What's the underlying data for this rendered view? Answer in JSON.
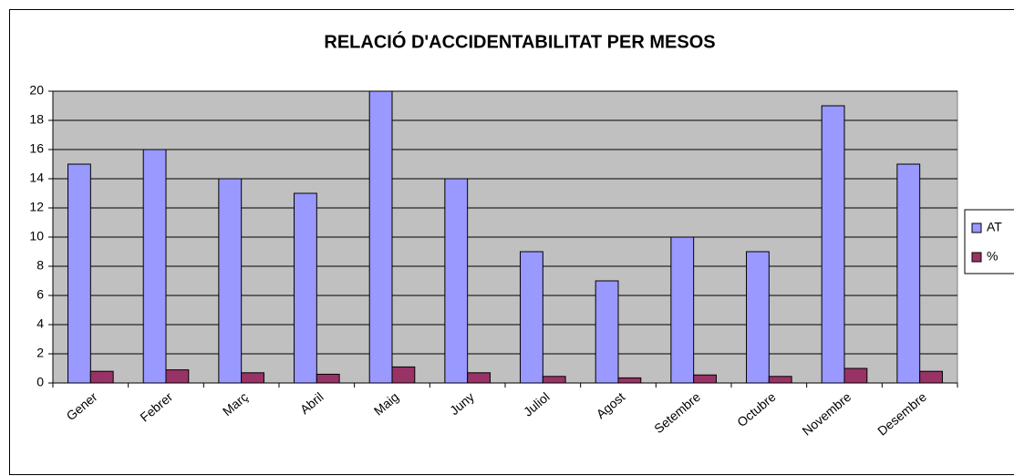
{
  "chart_data": {
    "type": "bar",
    "title": "RELACIÓ D'ACCIDENTABILITAT PER MESOS",
    "categories": [
      "Gener",
      "Febrer",
      "Març",
      "Abril",
      "Maig",
      "Juny",
      "Juliol",
      "Agost",
      "Setembre",
      "Octubre",
      "Novembre",
      "Desembre"
    ],
    "series": [
      {
        "name": "AT",
        "color": "#9999ff",
        "values": [
          15,
          16,
          14,
          13,
          20,
          14,
          9,
          7,
          10,
          9,
          19,
          15
        ]
      },
      {
        "name": "%",
        "color": "#993366",
        "values": [
          0.8,
          0.9,
          0.7,
          0.6,
          1.1,
          0.7,
          0.45,
          0.35,
          0.55,
          0.45,
          1.0,
          0.8
        ]
      }
    ],
    "ylim": [
      0,
      20
    ],
    "yticks": [
      0,
      2,
      4,
      6,
      8,
      10,
      12,
      14,
      16,
      18,
      20
    ],
    "grid": true,
    "legend": "right"
  }
}
